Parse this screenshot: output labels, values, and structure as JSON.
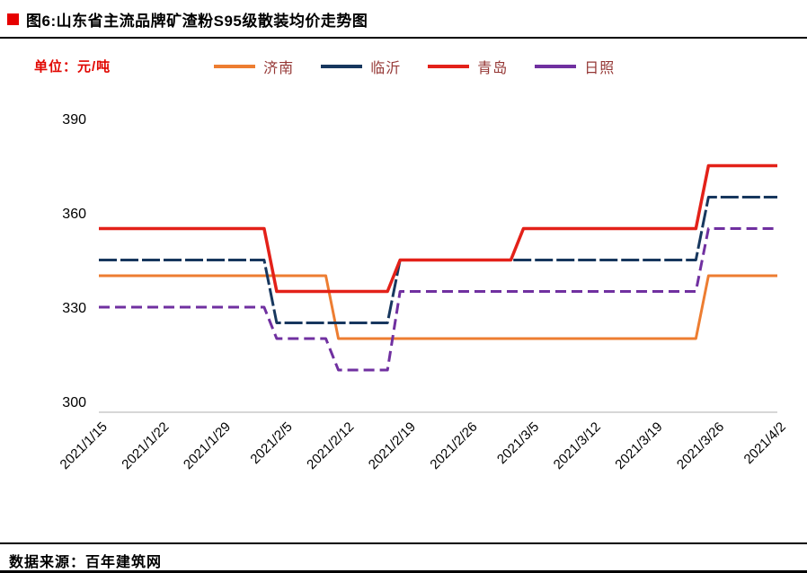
{
  "title": "图6:山东省主流品牌矿渣粉S95级散装均价走势图",
  "unit_label": "单位：元/吨",
  "source": "数据来源：百年建筑网",
  "accent_colors": {
    "title_bullet": "#e60000",
    "unit_text": "#e10600",
    "legend_text": "#953735",
    "axis_line": "#bfbfbf"
  },
  "chart_data": {
    "type": "line",
    "title": "山东省主流品牌矿渣粉S95级散装均价走势图",
    "ylabel": "元/吨",
    "categories": [
      "2021/1/15",
      "2021/1/22",
      "2021/1/29",
      "2021/2/5",
      "2021/2/12",
      "2021/2/19",
      "2021/2/26",
      "2021/3/5",
      "2021/3/12",
      "2021/3/19",
      "2021/3/26",
      "2021/4/2"
    ],
    "yticks": [
      300,
      330,
      360,
      390
    ],
    "ylim": [
      300,
      390
    ],
    "grid": false,
    "legend_position": "top",
    "series": [
      {
        "name": "济南",
        "color": "#ed7d31",
        "dash": "",
        "width": 3,
        "values": [
          340,
          340,
          340,
          340,
          320,
          320,
          320,
          320,
          320,
          320,
          340,
          340
        ]
      },
      {
        "name": "临沂",
        "color": "#17375e",
        "dash": "20 4",
        "width": 3,
        "values": [
          345,
          345,
          345,
          325,
          325,
          345,
          345,
          345,
          345,
          345,
          365,
          365
        ]
      },
      {
        "name": "青岛",
        "color": "#e32119",
        "dash": "",
        "width": 3.5,
        "values": [
          355,
          355,
          355,
          335,
          335,
          345,
          345,
          355,
          355,
          355,
          375,
          375
        ]
      },
      {
        "name": "日照",
        "color": "#7030a0",
        "dash": "12 6",
        "width": 3,
        "values": [
          330,
          330,
          330,
          320,
          310,
          335,
          335,
          335,
          335,
          335,
          355,
          355
        ]
      }
    ],
    "legend_order": [
      "济南",
      "临沂",
      "青岛",
      "日照"
    ]
  }
}
